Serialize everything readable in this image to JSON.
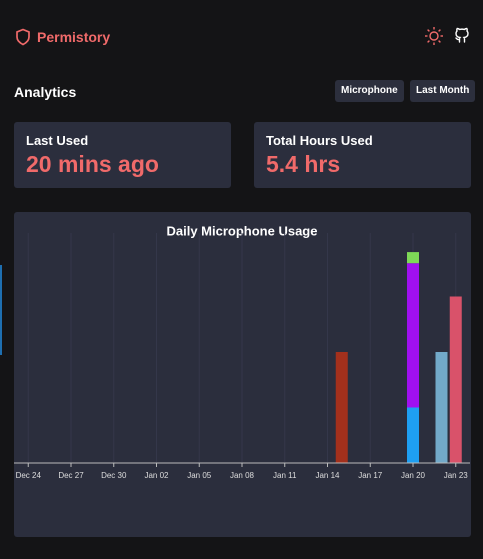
{
  "header": {
    "title": "Permistory"
  },
  "analytics": {
    "title": "Analytics",
    "filters": [
      "Microphone",
      "Last Month"
    ]
  },
  "stats": [
    {
      "label": "Last Used",
      "value": "20 mins ago"
    },
    {
      "label": "Total Hours Used",
      "value": "5.4 hrs"
    }
  ],
  "chart_data": {
    "type": "bar",
    "stacked": true,
    "title": "Daily Microphone Usage",
    "x": [
      "Jan 15",
      "Jan 20",
      "Jan 22",
      "Jan 23"
    ],
    "series": [
      {
        "color": "#a3301c",
        "values": [
          1.0,
          null,
          null,
          null
        ]
      },
      {
        "color": "#1e9ff2",
        "values": [
          null,
          0.5,
          null,
          null
        ]
      },
      {
        "color": "#a010f0",
        "values": [
          null,
          1.3,
          null,
          null
        ]
      },
      {
        "color": "#7ed957",
        "values": [
          null,
          0.1,
          null,
          null
        ]
      },
      {
        "color": "#72a9c9",
        "values": [
          null,
          null,
          1.0,
          null
        ]
      },
      {
        "color": "#d9526a",
        "values": [
          null,
          null,
          null,
          1.5
        ]
      }
    ],
    "xlim": [
      "Dec 23",
      "Jan 24"
    ],
    "xticks": [
      "Dec 24",
      "Dec 27",
      "Dec 30",
      "Jan 02",
      "Jan 05",
      "Jan 08",
      "Jan 11",
      "Jan 14",
      "Jan 17",
      "Jan 20",
      "Jan 23"
    ],
    "ylim": [
      0,
      2
    ],
    "grid": true
  }
}
